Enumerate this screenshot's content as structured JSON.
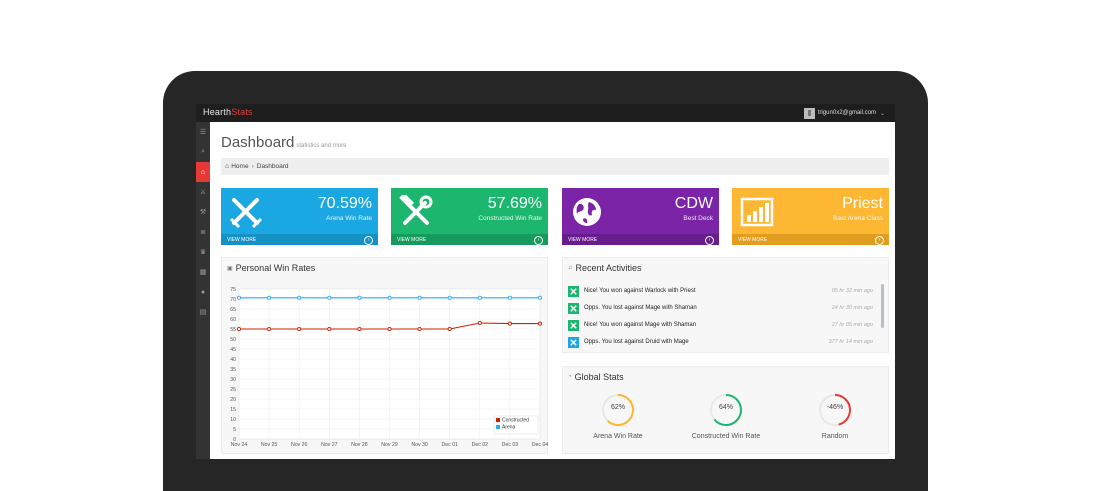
{
  "app": {
    "brand_part1": "Hearth",
    "brand_part2": "Stats",
    "user_email": "trigun0x2@gmail.com"
  },
  "sidebar": {
    "items": [
      {
        "icon": "menu-icon"
      },
      {
        "icon": "search-icon"
      },
      {
        "icon": "home-icon",
        "active": true
      },
      {
        "icon": "arena-icon"
      },
      {
        "icon": "constructed-icon"
      },
      {
        "icon": "list-icon"
      },
      {
        "icon": "trophy-icon"
      },
      {
        "icon": "grid-icon"
      },
      {
        "icon": "user-icon"
      },
      {
        "icon": "chart-icon"
      }
    ]
  },
  "page": {
    "title": "Dashboard",
    "subtitle": "statistics and more"
  },
  "breadcrumb": {
    "home": "Home",
    "current": "Dashboard"
  },
  "tiles": [
    {
      "value": "70.59%",
      "label": "Arena Win Rate",
      "footer": "VIEW MORE",
      "color": "#1ba7e1",
      "footer_color": "#1691c4",
      "icon": "crossed-swords-icon"
    },
    {
      "value": "57.69%",
      "label": "Constructed Win Rate",
      "footer": "VIEW MORE",
      "color": "#1cb66f",
      "footer_color": "#179a5d",
      "icon": "hammer-wrench-icon"
    },
    {
      "value": "CDW",
      "label": "Best Deck",
      "footer": "VIEW MORE",
      "color": "#7b24a7",
      "footer_color": "#671e8c",
      "icon": "globe-icon"
    },
    {
      "value": "Priest",
      "label": "Best Arena Class",
      "footer": "VIEW MORE",
      "color": "#fdb733",
      "footer_color": "#e09d20",
      "icon": "bar-chart-icon"
    }
  ],
  "win_rates_panel": {
    "title": "Personal Win Rates"
  },
  "chart_data": {
    "type": "line",
    "title": "Personal Win Rates",
    "x": [
      "Nov 24",
      "Nov 25",
      "Nov 26",
      "Nov 27",
      "Nov 28",
      "Nov 29",
      "Nov 30",
      "Dec 01",
      "Dec 02",
      "Dec 03",
      "Dec 04"
    ],
    "series": [
      {
        "name": "Constructed",
        "color": "#cc2200",
        "values": [
          55,
          55,
          55,
          55,
          55,
          55,
          55,
          55,
          58,
          57.7,
          57.7
        ]
      },
      {
        "name": "Arena",
        "color": "#33aaee",
        "values": [
          70.6,
          70.6,
          70.6,
          70.6,
          70.6,
          70.6,
          70.6,
          70.6,
          70.6,
          70.6,
          70.6
        ]
      }
    ],
    "y_ticks": [
      "0",
      "5",
      "10",
      "15",
      "20",
      "25",
      "30",
      "35",
      "40",
      "45",
      "50",
      "55",
      "60",
      "65",
      "70",
      "75"
    ],
    "ylim": [
      0,
      75
    ],
    "grid": true,
    "legend": "bottom-right"
  },
  "activities_panel": {
    "title": "Recent Activities",
    "items": [
      {
        "text": "Nice! You won against Warlock with Priest",
        "time": "05 hr 32 min ago",
        "color": "#1cb66f",
        "icon": "hammer-wrench-icon"
      },
      {
        "text": "Opps. You lost against Mage with Shaman",
        "time": "24 hr 30 min ago",
        "color": "#1cb66f",
        "icon": "hammer-wrench-icon"
      },
      {
        "text": "Nice! You won against Mage with Shaman",
        "time": "27 hr 05 min ago",
        "color": "#1cb66f",
        "icon": "hammer-wrench-icon"
      },
      {
        "text": "Opps. You lost against Druid with Mage",
        "time": "377 hr 14 min ago",
        "color": "#1ba7e1",
        "icon": "crossed-swords-icon"
      }
    ]
  },
  "global_panel": {
    "title": "Global Stats",
    "gauges": [
      {
        "value": "62%",
        "fraction": 0.62,
        "label": "Arena Win Rate",
        "color": "#fdb733"
      },
      {
        "value": "64%",
        "fraction": 0.64,
        "label": "Constructed Win Rate",
        "color": "#1cb66f"
      },
      {
        "value": "-46%",
        "fraction": 0.46,
        "label": "Random",
        "color": "#e53935"
      }
    ]
  }
}
